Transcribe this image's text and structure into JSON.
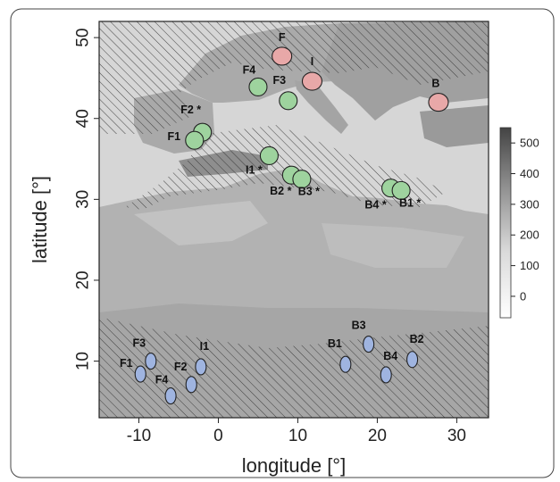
{
  "map": {
    "xlabel": "longitude [°]",
    "ylabel": "latitude [°]",
    "xlim": [
      -15,
      34
    ],
    "ylim": [
      3,
      52
    ],
    "x_ticks": [
      -10,
      0,
      10,
      20,
      30
    ],
    "y_ticks": [
      10,
      20,
      30,
      40,
      50
    ],
    "colors": {
      "land": "#b4b4b4",
      "sea": "#d8d8d8",
      "hatch": "#333333",
      "north_sites": "#9ed39e",
      "north_sites_red": "#e8a8a8",
      "south_sites": "#9fb4e0",
      "outline": "#222222"
    }
  },
  "colorbar": {
    "ticks": [
      0,
      100,
      200,
      300,
      400,
      500
    ],
    "range": [
      -70,
      550
    ],
    "colors": [
      "#ffffff",
      "#444444"
    ]
  },
  "sites": [
    {
      "label": "F",
      "lon": 8.0,
      "lat": 47.7,
      "color": "red",
      "star": false
    },
    {
      "label": "I",
      "lon": 11.8,
      "lat": 44.6,
      "color": "red",
      "star": false
    },
    {
      "label": "B",
      "lon": 27.7,
      "lat": 42.0,
      "color": "red",
      "star": false
    },
    {
      "label": "F4",
      "lon": 5.0,
      "lat": 43.9,
      "color": "green",
      "star": false
    },
    {
      "label": "F3",
      "lon": 8.8,
      "lat": 42.2,
      "color": "green",
      "star": false
    },
    {
      "label": "F2",
      "lon": -2.0,
      "lat": 38.3,
      "color": "green",
      "star": true
    },
    {
      "label": "F1",
      "lon": -3.0,
      "lat": 37.3,
      "color": "green",
      "star": false
    },
    {
      "label": "I1",
      "lon": 6.4,
      "lat": 35.4,
      "color": "green",
      "star": true
    },
    {
      "label": "B2",
      "lon": 9.2,
      "lat": 33.0,
      "color": "green",
      "star": true
    },
    {
      "label": "B3",
      "lon": 10.5,
      "lat": 32.5,
      "color": "green",
      "star": true
    },
    {
      "label": "B4",
      "lon": 21.7,
      "lat": 31.4,
      "color": "green",
      "star": true
    },
    {
      "label": "B1",
      "lon": 23.0,
      "lat": 31.1,
      "color": "green",
      "star": true
    },
    {
      "label": "F3",
      "lon": -8.5,
      "lat": 10.0,
      "color": "blue",
      "star": false
    },
    {
      "label": "F1",
      "lon": -9.8,
      "lat": 8.4,
      "color": "blue",
      "star": false
    },
    {
      "label": "F4",
      "lon": -6.0,
      "lat": 5.7,
      "color": "blue",
      "star": false
    },
    {
      "label": "F2",
      "lon": -3.4,
      "lat": 7.1,
      "color": "blue",
      "star": false
    },
    {
      "label": "I1",
      "lon": -2.2,
      "lat": 9.3,
      "color": "blue",
      "star": false
    },
    {
      "label": "B1",
      "lon": 16.0,
      "lat": 9.6,
      "color": "blue",
      "star": false
    },
    {
      "label": "B3",
      "lon": 18.9,
      "lat": 12.1,
      "color": "blue",
      "star": false
    },
    {
      "label": "B4",
      "lon": 21.1,
      "lat": 8.3,
      "color": "blue",
      "star": false
    },
    {
      "label": "B2",
      "lon": 24.4,
      "lat": 10.2,
      "color": "blue",
      "star": false
    }
  ]
}
